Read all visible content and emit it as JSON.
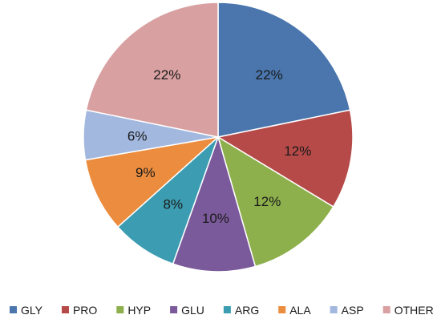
{
  "chart_data": {
    "type": "pie",
    "title": "",
    "legend_position": "bottom",
    "categories": [
      "GLY",
      "PRO",
      "HYP",
      "GLU",
      "ARG",
      "ALA",
      "ASP",
      "OTHER"
    ],
    "values": [
      22,
      12,
      12,
      10,
      8,
      9,
      6,
      22
    ],
    "labels": [
      "22%",
      "12%",
      "12%",
      "10%",
      "8%",
      "9%",
      "6%",
      "22%"
    ],
    "colors": [
      "#4a76ad",
      "#b64a48",
      "#8eb04c",
      "#7b5a9b",
      "#3c9cb1",
      "#eb8c3e",
      "#a2b8df",
      "#d9a0a1"
    ]
  }
}
